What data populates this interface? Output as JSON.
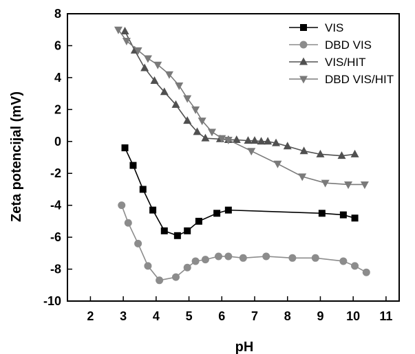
{
  "chart_data": {
    "type": "line",
    "title": "",
    "xlabel": "pH",
    "ylabel": "Zeta potencijal (mV)",
    "xlim": [
      1.3,
      11.4
    ],
    "ylim": [
      -10,
      8
    ],
    "xticks": [
      2,
      3,
      4,
      5,
      6,
      7,
      8,
      9,
      10,
      11
    ],
    "yticks": [
      -10,
      -8,
      -6,
      -4,
      -2,
      0,
      2,
      4,
      6,
      8
    ],
    "grid": false,
    "legend_position": "top-right",
    "series": [
      {
        "name": "VIS",
        "marker": "square",
        "color": "#000000",
        "x": [
          3.05,
          3.3,
          3.6,
          3.9,
          4.25,
          4.65,
          4.95,
          5.3,
          5.85,
          6.2,
          9.05,
          9.7,
          10.05
        ],
        "y": [
          -0.4,
          -1.5,
          -3.0,
          -4.3,
          -5.6,
          -5.9,
          -5.6,
          -5.0,
          -4.5,
          -4.3,
          -4.5,
          -4.6,
          -4.8
        ]
      },
      {
        "name": "DBD VIS",
        "marker": "circle",
        "color": "#8c8c8c",
        "x": [
          2.95,
          3.15,
          3.45,
          3.75,
          4.1,
          4.6,
          4.95,
          5.2,
          5.5,
          5.9,
          6.2,
          6.65,
          7.35,
          8.15,
          8.85,
          9.7,
          10.05,
          10.4
        ],
        "y": [
          -4.0,
          -5.1,
          -6.4,
          -7.8,
          -8.7,
          -8.5,
          -7.9,
          -7.5,
          -7.4,
          -7.2,
          -7.2,
          -7.3,
          -7.2,
          -7.3,
          -7.3,
          -7.5,
          -7.8,
          -8.2
        ]
      },
      {
        "name": "VIS/HIT",
        "marker": "triangle-up",
        "color": "#505050",
        "x": [
          3.05,
          3.35,
          3.65,
          3.95,
          4.25,
          4.6,
          4.95,
          5.25,
          5.5,
          5.95,
          6.2,
          6.45,
          6.8,
          7.0,
          7.2,
          7.4,
          7.65,
          8.0,
          8.5,
          9.0,
          9.65,
          10.05
        ],
        "y": [
          6.9,
          5.7,
          4.6,
          3.8,
          3.1,
          2.3,
          1.3,
          0.6,
          0.2,
          0.15,
          0.1,
          0.1,
          0.05,
          0.05,
          0.0,
          0.0,
          -0.1,
          -0.3,
          -0.6,
          -0.8,
          -0.9,
          -0.8
        ]
      },
      {
        "name": "DBD VIS/HIT",
        "marker": "triangle-down",
        "color": "#7a7a7a",
        "x": [
          2.85,
          3.1,
          3.45,
          3.75,
          4.05,
          4.4,
          4.7,
          4.95,
          5.2,
          5.4,
          5.7,
          6.0,
          6.2,
          6.9,
          7.7,
          8.45,
          9.15,
          9.85,
          10.35
        ],
        "y": [
          7.0,
          6.3,
          5.7,
          5.2,
          4.8,
          4.2,
          3.5,
          2.7,
          2.0,
          1.3,
          0.6,
          0.2,
          0.1,
          -0.6,
          -1.4,
          -2.2,
          -2.6,
          -2.7,
          -2.7
        ]
      }
    ]
  }
}
